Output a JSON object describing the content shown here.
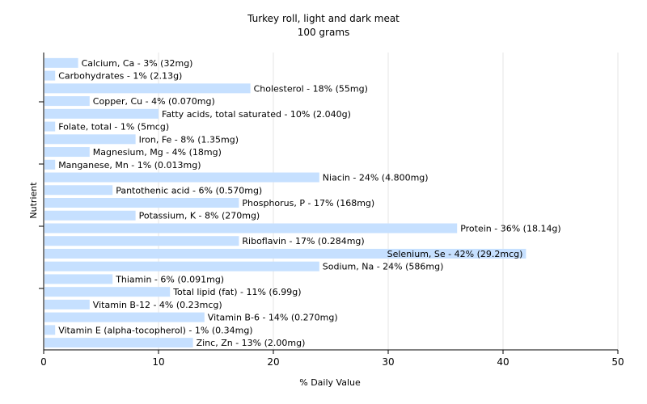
{
  "chart_data": {
    "type": "bar",
    "orientation": "horizontal",
    "title": "Turkey roll, light and dark meat",
    "subtitle": "100 grams",
    "xlabel": "% Daily Value",
    "ylabel": "Nutrient",
    "xlim": [
      0,
      50
    ],
    "xticks": [
      0,
      10,
      20,
      30,
      40,
      50
    ],
    "grid": true,
    "bar_color": "#c6e0ff",
    "grid_color": "#e6e6e6",
    "categories": [
      "Calcium, Ca - 3% (32mg)",
      "Carbohydrates - 1% (2.13g)",
      "Cholesterol - 18% (55mg)",
      "Copper, Cu - 4% (0.070mg)",
      "Fatty acids, total saturated - 10% (2.040g)",
      "Folate, total - 1% (5mcg)",
      "Iron, Fe - 8% (1.35mg)",
      "Magnesium, Mg - 4% (18mg)",
      "Manganese, Mn - 1% (0.013mg)",
      "Niacin - 24% (4.800mg)",
      "Pantothenic acid - 6% (0.570mg)",
      "Phosphorus, P - 17% (168mg)",
      "Potassium, K - 8% (270mg)",
      "Protein - 36% (18.14g)",
      "Riboflavin - 17% (0.284mg)",
      "Selenium, Se - 42% (29.2mcg)",
      "Sodium, Na - 24% (586mg)",
      "Thiamin - 6% (0.091mg)",
      "Total lipid (fat) - 11% (6.99g)",
      "Vitamin B-12 - 4% (0.23mcg)",
      "Vitamin B-6 - 14% (0.270mg)",
      "Vitamin E (alpha-tocopherol) - 1% (0.34mg)",
      "Zinc, Zn - 13% (2.00mg)"
    ],
    "values": [
      3,
      1,
      18,
      4,
      10,
      1,
      8,
      4,
      1,
      24,
      6,
      17,
      8,
      36,
      17,
      42,
      24,
      6,
      11,
      4,
      14,
      1,
      13
    ]
  }
}
